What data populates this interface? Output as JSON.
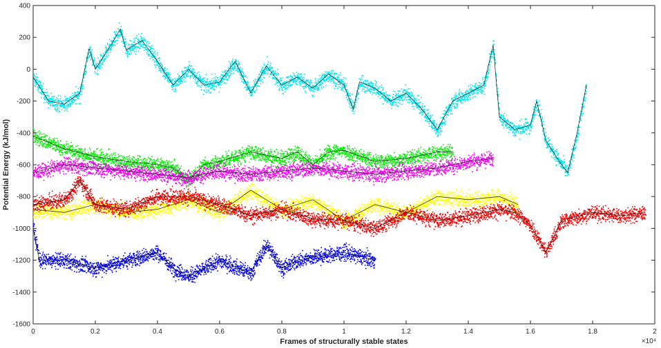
{
  "chart_data": {
    "type": "scatter",
    "title": "",
    "xlabel": "Frames of structurally stable states",
    "ylabel": "Potential Energy (kJ/mol)",
    "x_exponent_label": "×10⁴",
    "xlim": [
      0,
      2
    ],
    "ylim": [
      -1600,
      400
    ],
    "x_ticks": [
      "0",
      "0.2",
      "0.4",
      "0.6",
      "0.8",
      "1",
      "1.2",
      "1.4",
      "1.6",
      "1.8",
      "2"
    ],
    "y_ticks": [
      "400",
      "200",
      "0",
      "-200",
      "-400",
      "-600",
      "-800",
      "-1000",
      "-1200",
      "-1400",
      "-1600"
    ],
    "grid": false,
    "marker": "dots with black moving-average line",
    "series": [
      {
        "color": "#00e5ee",
        "x": [
          0,
          0.05,
          0.1,
          0.15,
          0.18,
          0.2,
          0.25,
          0.28,
          0.3,
          0.35,
          0.4,
          0.45,
          0.5,
          0.55,
          0.6,
          0.65,
          0.7,
          0.75,
          0.8,
          0.85,
          0.9,
          0.95,
          1.0,
          1.03,
          1.05,
          1.1,
          1.15,
          1.2,
          1.25,
          1.3,
          1.35,
          1.4,
          1.45,
          1.48,
          1.5,
          1.55,
          1.6,
          1.62,
          1.65,
          1.7,
          1.72,
          1.75,
          1.78
        ],
        "values": [
          -50,
          -200,
          -220,
          -150,
          130,
          0,
          150,
          250,
          120,
          180,
          50,
          -100,
          0,
          -100,
          -80,
          50,
          -150,
          20,
          -100,
          -50,
          -120,
          -30,
          -100,
          -250,
          -80,
          -120,
          -200,
          -150,
          -250,
          -380,
          -200,
          -150,
          -100,
          150,
          -300,
          -380,
          -350,
          -200,
          -450,
          -600,
          -650,
          -400,
          -100
        ]
      },
      {
        "color": "#00ee00",
        "x": [
          0,
          0.1,
          0.2,
          0.3,
          0.4,
          0.45,
          0.5,
          0.55,
          0.6,
          0.7,
          0.8,
          0.85,
          0.9,
          0.95,
          1.0,
          1.1,
          1.2,
          1.3,
          1.35
        ],
        "values": [
          -420,
          -500,
          -550,
          -580,
          -600,
          -620,
          -700,
          -600,
          -580,
          -520,
          -560,
          -520,
          -600,
          -520,
          -510,
          -580,
          -560,
          -520,
          -520
        ]
      },
      {
        "color": "#ee00ee",
        "x": [
          0,
          0.1,
          0.2,
          0.3,
          0.4,
          0.5,
          0.6,
          0.7,
          0.8,
          0.9,
          1.0,
          1.1,
          1.2,
          1.3,
          1.4,
          1.48
        ],
        "values": [
          -650,
          -600,
          -620,
          -640,
          -660,
          -680,
          -640,
          -660,
          -640,
          -620,
          -640,
          -660,
          -640,
          -620,
          -580,
          -560
        ]
      },
      {
        "color": "#ffff00",
        "x": [
          0,
          0.1,
          0.2,
          0.3,
          0.4,
          0.5,
          0.6,
          0.7,
          0.8,
          0.9,
          1.0,
          1.1,
          1.2,
          1.3,
          1.4,
          1.5,
          1.56
        ],
        "values": [
          -880,
          -900,
          -850,
          -900,
          -880,
          -820,
          -900,
          -760,
          -880,
          -820,
          -950,
          -850,
          -900,
          -800,
          -820,
          -800,
          -850
        ]
      },
      {
        "color": "#ee0000",
        "x": [
          0,
          0.1,
          0.15,
          0.2,
          0.3,
          0.4,
          0.5,
          0.6,
          0.7,
          0.8,
          0.9,
          1.0,
          1.1,
          1.2,
          1.3,
          1.4,
          1.5,
          1.55,
          1.6,
          1.65,
          1.7,
          1.8,
          1.9,
          1.97
        ],
        "values": [
          -850,
          -820,
          -700,
          -850,
          -880,
          -800,
          -800,
          -850,
          -920,
          -880,
          -940,
          -950,
          -1000,
          -900,
          -950,
          -920,
          -880,
          -900,
          -980,
          -1150,
          -950,
          -900,
          -920,
          -900
        ]
      },
      {
        "color": "#0000ee",
        "x": [
          0,
          0.02,
          0.1,
          0.2,
          0.3,
          0.4,
          0.45,
          0.5,
          0.55,
          0.6,
          0.7,
          0.75,
          0.8,
          0.85,
          0.9,
          1.0,
          1.1
        ],
        "values": [
          -1000,
          -1200,
          -1200,
          -1250,
          -1200,
          -1150,
          -1250,
          -1300,
          -1250,
          -1200,
          -1280,
          -1100,
          -1250,
          -1200,
          -1180,
          -1150,
          -1200
        ]
      }
    ]
  }
}
